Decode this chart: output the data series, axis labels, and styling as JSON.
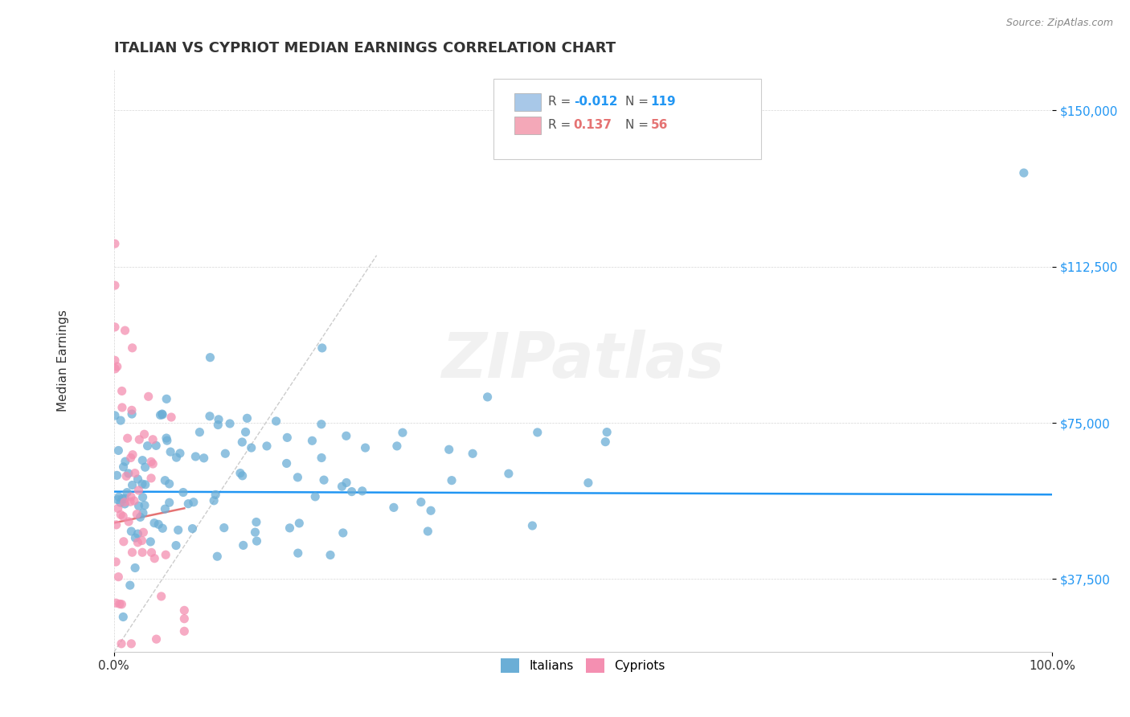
{
  "title": "ITALIAN VS CYPRIOT MEDIAN EARNINGS CORRELATION CHART",
  "source": "Source: ZipAtlas.com",
  "ylabel": "Median Earnings",
  "xlim": [
    0.0,
    1.0
  ],
  "ylim": [
    20000,
    160000
  ],
  "yticks": [
    37500,
    75000,
    112500,
    150000
  ],
  "ytick_labels": [
    "$37,500",
    "$75,000",
    "$112,500",
    "$150,000"
  ],
  "xtick_labels": [
    "0.0%",
    "100.0%"
  ],
  "legend_italian": {
    "R": "-0.012",
    "N": "119"
  },
  "legend_cypriot": {
    "R": "0.137",
    "N": "56"
  },
  "italian_dot_color": "#6baed6",
  "cypriot_dot_color": "#f48fb1",
  "italian_legend_color": "#a8c8e8",
  "cypriot_legend_color": "#f4a8b8",
  "regression_line_color": "#2196F3",
  "cypriot_regression_color": "#e57373",
  "diagonal_line_color": "#cccccc",
  "watermark": "ZIPatlas",
  "background_color": "#ffffff",
  "blue_text_color": "#2196F3",
  "pink_text_color": "#e57373"
}
